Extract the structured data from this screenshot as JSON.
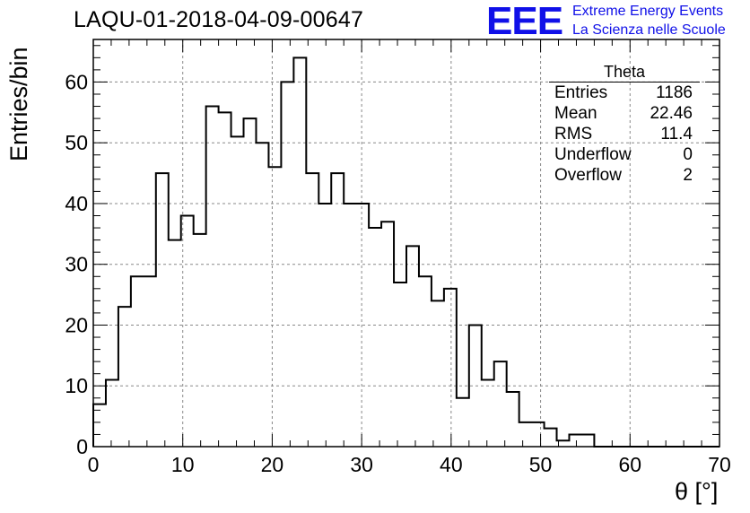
{
  "header": {
    "title": "LAQU-01-2018-04-09-00647",
    "logo_text": "EEE",
    "logo_line1": "Extreme Energy Events",
    "logo_line2": "La Scienza nelle Scuole"
  },
  "stats_box": {
    "name": "Theta",
    "rows": [
      {
        "label": "Entries",
        "value": "1186"
      },
      {
        "label": "Mean",
        "value": "22.46"
      },
      {
        "label": "RMS",
        "value": "11.4"
      },
      {
        "label": "Underflow",
        "value": "0"
      },
      {
        "label": "Overflow",
        "value": "2"
      }
    ]
  },
  "chart_data": {
    "type": "bar",
    "title": "LAQU-01-2018-04-09-00647",
    "xlabel": "θ [°]",
    "ylabel": "Entries/bin",
    "xlim": [
      0,
      70
    ],
    "ylim": [
      0,
      67
    ],
    "xticks": [
      0,
      10,
      20,
      30,
      40,
      50,
      60,
      70
    ],
    "yticks": [
      0,
      10,
      20,
      30,
      40,
      50,
      60
    ],
    "grid": true,
    "bin_width": 1.4,
    "x_bin_edges_start": 0,
    "values": [
      7,
      11,
      23,
      28,
      28,
      45,
      34,
      38,
      35,
      56,
      55,
      51,
      54,
      50,
      46,
      60,
      64,
      45,
      40,
      45,
      40,
      40,
      36,
      37,
      27,
      33,
      28,
      24,
      26,
      8,
      20,
      11,
      14,
      9,
      4,
      4,
      3,
      1,
      2,
      2,
      0,
      0,
      0,
      0,
      0,
      0,
      0,
      0,
      0,
      0
    ],
    "colors": {
      "line": "#000000",
      "grid": "#888888",
      "axis": "#000000"
    }
  }
}
